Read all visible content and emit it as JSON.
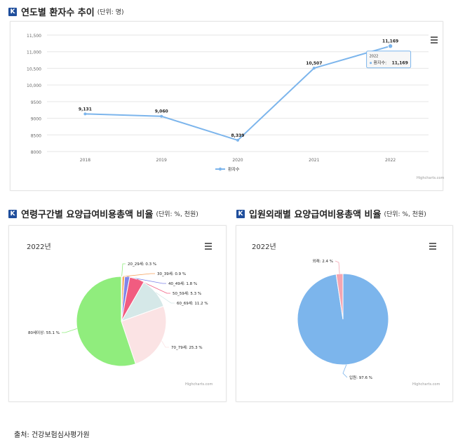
{
  "titles": {
    "line_title": "연도별 환자수 추이",
    "line_unit": "(단위: 명)",
    "pie1_title": "연령구간별 요양급여비용총액 비율",
    "pie1_unit": "(단위: %, 천원)",
    "pie2_title": "입원외래별 요양급여비용총액 비율",
    "pie2_unit": "(단위: %, 천원)",
    "logo_letter": "K"
  },
  "credit_text": "Highcharts.com",
  "source_text": "출처: 건강보험심사평가원",
  "colors": {
    "line": "#7cb5ec",
    "logo": "#1f4e9c",
    "pie1": [
      "#90ed7d",
      "#f7a35c",
      "#8085e9",
      "#f15c80",
      "#d5e8e8",
      "#fbe3e4"
    ],
    "pie2": [
      "#7cb5ec",
      "#f4a6b2"
    ]
  },
  "chart_data": [
    {
      "type": "line",
      "title": "연도별 환자수 추이",
      "categories": [
        "2018",
        "2019",
        "2020",
        "2021",
        "2022"
      ],
      "series": [
        {
          "name": "환자수",
          "values": [
            9131,
            9060,
            8339,
            10507,
            11169
          ]
        }
      ],
      "data_labels": [
        "9,131",
        "9,060",
        "8,339",
        "10,507",
        "11,169"
      ],
      "ylim": [
        8000,
        11500
      ],
      "y_ticks": [
        "8000",
        "8500",
        "9000",
        "9500",
        "10,000",
        "10,500",
        "11,000",
        "11,500"
      ],
      "y_tick_values": [
        8000,
        8500,
        9000,
        9500,
        10000,
        10500,
        11000,
        11500
      ],
      "grid": true,
      "legend": "bottom-center",
      "tooltip": {
        "header": "2022",
        "label": "환자수: ",
        "value": "11,169"
      }
    },
    {
      "type": "pie",
      "year": "2022년",
      "labels": [
        "20_29세",
        "30_39세",
        "40_49세",
        "50_59세",
        "60_69세",
        "70_79세",
        "80세이상"
      ],
      "values": [
        0.3,
        0.9,
        1.8,
        5.3,
        11.2,
        25.3,
        55.1
      ],
      "display": [
        "20_29세: 0.3 %",
        "30_39세: 0.9 %",
        "40_49세: 1.8 %",
        "50_59세: 5.3 %",
        "60_69세: 11.2 %",
        "70_79세: 25.3 %",
        "80세이상: 55.1 %"
      ]
    },
    {
      "type": "pie",
      "year": "2022년",
      "labels": [
        "입원",
        "외래"
      ],
      "values": [
        97.6,
        2.4
      ],
      "display": [
        "입원: 97.6 %",
        "외래: 2.4 %"
      ]
    }
  ]
}
